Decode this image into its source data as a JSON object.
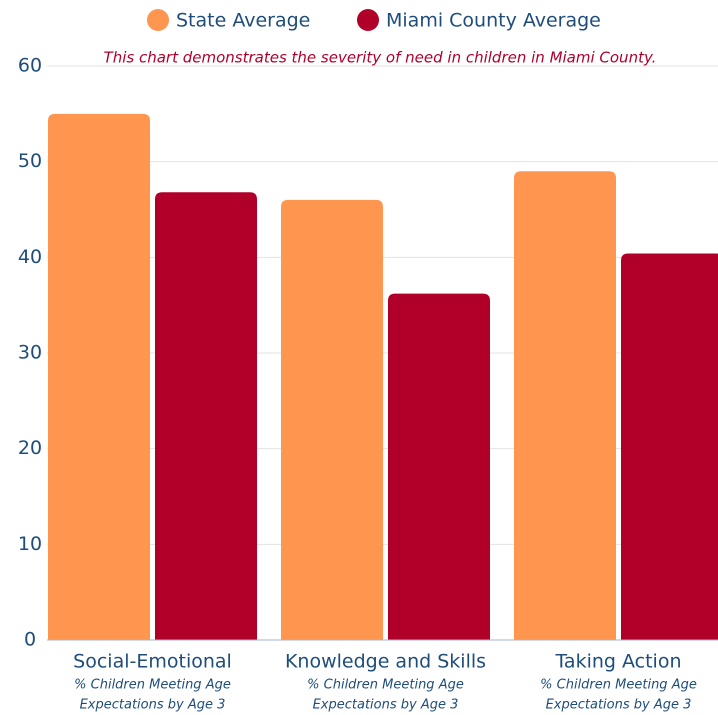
{
  "chart_data": {
    "type": "bar",
    "note": "This chart demonstrates the severity of need in children in Miami County.",
    "categories": [
      "Social-Emotional",
      "Knowledge and Skills",
      "Taking Action"
    ],
    "category_subtitles": [
      [
        "% Children Meeting Age",
        "Expectations by Age 3"
      ],
      [
        "% Children Meeting Age",
        "Expectations by Age 3"
      ],
      [
        "% Children Meeting Age",
        "Expectations by Age 3"
      ]
    ],
    "series": [
      {
        "name": "State Average",
        "color": "#ff9650",
        "values": [
          55,
          46,
          49
        ]
      },
      {
        "name": "Miami County Average",
        "color": "#b0002a",
        "values": [
          46.8,
          36.2,
          40.4
        ]
      }
    ],
    "ylim": [
      0,
      60
    ],
    "yticks": [
      0,
      10,
      20,
      30,
      40,
      50,
      60
    ],
    "grid": true,
    "legend": "top"
  }
}
